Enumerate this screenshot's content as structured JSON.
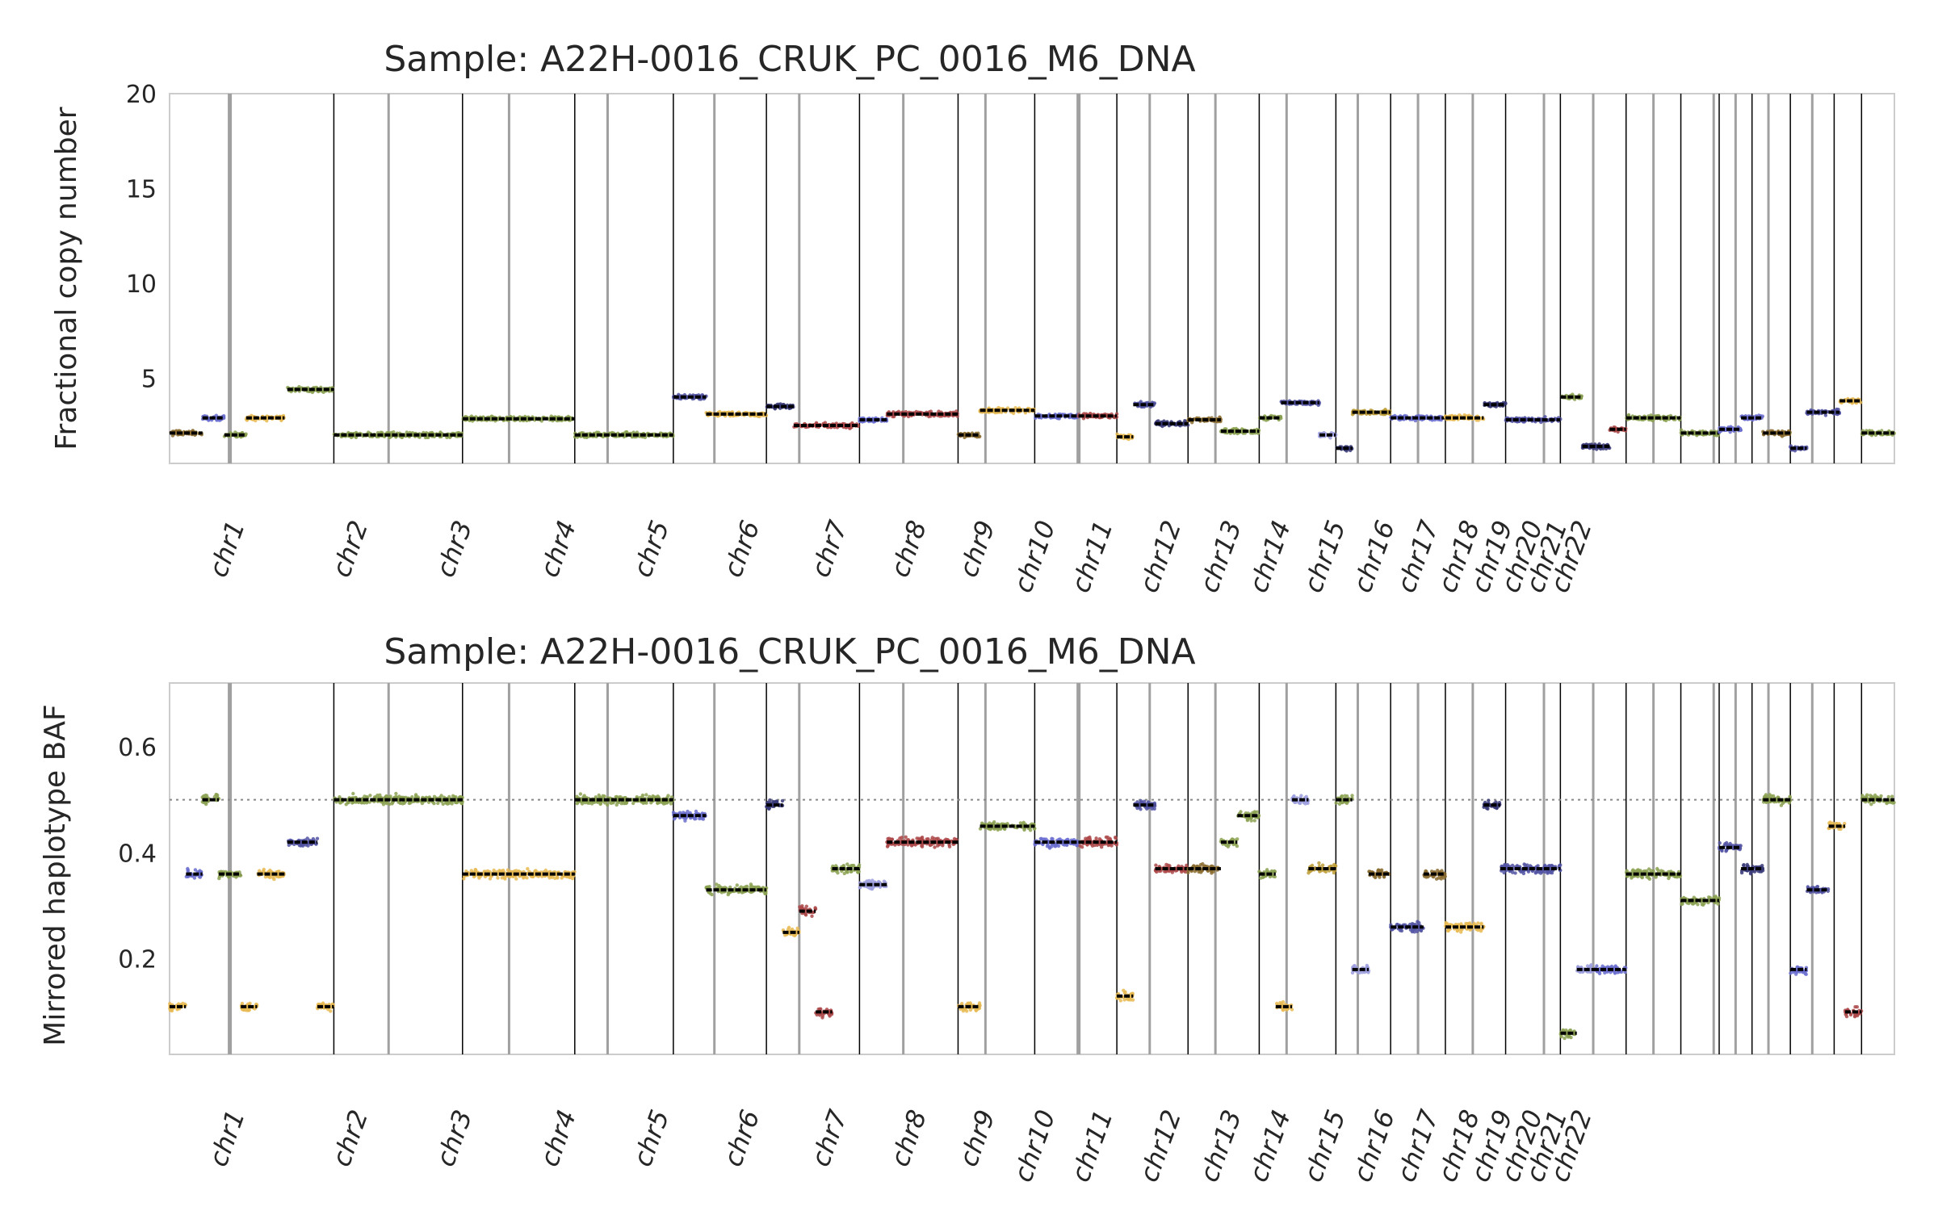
{
  "chart_data": [
    {
      "type": "scatter",
      "title": "Sample: A22H-0016_CRUK_PC_0016_M6_DNA",
      "ylabel": "Fractional copy number",
      "xlabel": "",
      "ylim": [
        0.5,
        20
      ],
      "yticks": [
        "5",
        "10",
        "15",
        "20"
      ],
      "ytick_values": [
        5,
        10,
        15,
        20
      ],
      "grid": false,
      "legend": "none",
      "chromosomes": [
        "chr1",
        "chr2",
        "chr3",
        "chr4",
        "chr5",
        "chr6",
        "chr7",
        "chr8",
        "chr9",
        "chr10",
        "chr11",
        "chr12",
        "chr13",
        "chr14",
        "chr15",
        "chr16",
        "chr17",
        "chr18",
        "chr19",
        "chr20",
        "chr21",
        "chr22"
      ],
      "segments": [
        {
          "x0": 0.0,
          "x1": 0.6,
          "y": 2.1,
          "color": "#8c6d31"
        },
        {
          "x0": 0.6,
          "x1": 1.0,
          "y": 2.9,
          "color": "#6b6ecf"
        },
        {
          "x0": 1.0,
          "x1": 1.4,
          "y": 2.0,
          "color": "#8ca252"
        },
        {
          "x0": 1.4,
          "x1": 2.1,
          "y": 2.9,
          "color": "#e7ba52"
        },
        {
          "x0": 2.15,
          "x1": 3.0,
          "y": 4.4,
          "color": "#8ca252"
        },
        {
          "x0": 3.0,
          "x1": 5.35,
          "y": 2.0,
          "color": "#8ca252"
        },
        {
          "x0": 5.35,
          "x1": 7.4,
          "y": 2.85,
          "color": "#8ca252"
        },
        {
          "x0": 7.4,
          "x1": 9.2,
          "y": 2.0,
          "color": "#8ca252"
        },
        {
          "x0": 9.2,
          "x1": 9.8,
          "y": 4.0,
          "color": "#5254a3"
        },
        {
          "x0": 9.8,
          "x1": 10.9,
          "y": 3.1,
          "color": "#e7ba52"
        },
        {
          "x0": 10.9,
          "x1": 11.4,
          "y": 3.5,
          "color": "#393b79"
        },
        {
          "x0": 11.4,
          "x1": 12.6,
          "y": 2.5,
          "color": "#ad494a"
        },
        {
          "x0": 12.6,
          "x1": 13.1,
          "y": 2.8,
          "color": "#6b6ecf"
        },
        {
          "x0": 13.1,
          "x1": 14.4,
          "y": 3.1,
          "color": "#ad494a"
        },
        {
          "x0": 14.4,
          "x1": 14.8,
          "y": 2.0,
          "color": "#8c6d31"
        },
        {
          "x0": 14.8,
          "x1": 15.8,
          "y": 3.3,
          "color": "#e7ba52"
        },
        {
          "x0": 15.8,
          "x1": 16.6,
          "y": 3.0,
          "color": "#6b6ecf"
        },
        {
          "x0": 16.6,
          "x1": 17.3,
          "y": 3.0,
          "color": "#ad494a"
        },
        {
          "x0": 17.3,
          "x1": 17.6,
          "y": 1.9,
          "color": "#e7ba52"
        },
        {
          "x0": 17.6,
          "x1": 18.0,
          "y": 3.6,
          "color": "#5254a3"
        },
        {
          "x0": 18.0,
          "x1": 18.6,
          "y": 2.6,
          "color": "#393b79"
        },
        {
          "x0": 18.6,
          "x1": 19.2,
          "y": 2.8,
          "color": "#8c6d31"
        },
        {
          "x0": 19.2,
          "x1": 19.9,
          "y": 2.2,
          "color": "#8ca252"
        },
        {
          "x0": 19.9,
          "x1": 20.3,
          "y": 2.9,
          "color": "#8ca252"
        },
        {
          "x0": 20.3,
          "x1": 21.0,
          "y": 3.7,
          "color": "#5254a3"
        },
        {
          "x0": 21.0,
          "x1": 21.3,
          "y": 2.0,
          "color": "#9c9ede"
        },
        {
          "x0": 21.3,
          "x1": 21.6,
          "y": 1.3,
          "color": "#393b79"
        },
        {
          "x0": 21.6,
          "x1": 22.3,
          "y": 3.2,
          "color": "#bd9e39"
        },
        {
          "x0": 22.3,
          "x1": 23.3,
          "y": 2.9,
          "color": "#6b6ecf"
        },
        {
          "x0": 23.3,
          "x1": 24.0,
          "y": 2.9,
          "color": "#e7ba52"
        },
        {
          "x0": 24.0,
          "x1": 24.4,
          "y": 3.6,
          "color": "#393b79"
        },
        {
          "x0": 24.4,
          "x1": 25.4,
          "y": 2.8,
          "color": "#5254a3"
        },
        {
          "x0": 25.4,
          "x1": 25.8,
          "y": 4.0,
          "color": "#8ca252"
        },
        {
          "x0": 25.8,
          "x1": 26.3,
          "y": 1.4,
          "color": "#393b79"
        },
        {
          "x0": 26.3,
          "x1": 26.6,
          "y": 2.3,
          "color": "#ad494a"
        },
        {
          "x0": 26.6,
          "x1": 27.6,
          "y": 2.9,
          "color": "#8ca252"
        },
        {
          "x0": 27.6,
          "x1": 28.3,
          "y": 2.1,
          "color": "#8ca252"
        },
        {
          "x0": 28.3,
          "x1": 28.7,
          "y": 2.3,
          "color": "#6b6ecf"
        },
        {
          "x0": 28.7,
          "x1": 29.1,
          "y": 2.9,
          "color": "#6b6ecf"
        },
        {
          "x0": 29.1,
          "x1": 29.6,
          "y": 2.1,
          "color": "#8c6d31"
        },
        {
          "x0": 29.6,
          "x1": 29.9,
          "y": 1.3,
          "color": "#5254a3"
        },
        {
          "x0": 29.9,
          "x1": 30.5,
          "y": 3.2,
          "color": "#5254a3"
        },
        {
          "x0": 30.5,
          "x1": 30.9,
          "y": 3.8,
          "color": "#e7ba52"
        },
        {
          "x0": 30.9,
          "x1": 31.5,
          "y": 2.1,
          "color": "#8ca252"
        }
      ]
    },
    {
      "type": "scatter",
      "title": "Sample: A22H-0016_CRUK_PC_0016_M6_DNA",
      "ylabel": "Mirrored haplotype BAF",
      "xlabel": "",
      "ylim": [
        0.02,
        0.72
      ],
      "yticks": [
        "0.2",
        "0.4",
        "0.6"
      ],
      "ytick_values": [
        0.2,
        0.4,
        0.6
      ],
      "reference_line": 0.5,
      "grid": false,
      "legend": "none",
      "chromosomes": [
        "chr1",
        "chr2",
        "chr3",
        "chr4",
        "chr5",
        "chr6",
        "chr7",
        "chr8",
        "chr9",
        "chr10",
        "chr11",
        "chr12",
        "chr13",
        "chr14",
        "chr15",
        "chr16",
        "chr17",
        "chr18",
        "chr19",
        "chr20",
        "chr21",
        "chr22"
      ],
      "segments": [
        {
          "x0": 0.0,
          "x1": 0.3,
          "y": 0.11,
          "color": "#e7ba52"
        },
        {
          "x0": 0.3,
          "x1": 0.6,
          "y": 0.36,
          "color": "#6b6ecf"
        },
        {
          "x0": 0.6,
          "x1": 0.9,
          "y": 0.5,
          "color": "#8ca252"
        },
        {
          "x0": 0.9,
          "x1": 1.3,
          "y": 0.36,
          "color": "#8ca252"
        },
        {
          "x0": 1.3,
          "x1": 1.6,
          "y": 0.11,
          "color": "#e7ba52"
        },
        {
          "x0": 1.6,
          "x1": 2.1,
          "y": 0.36,
          "color": "#e7ba52"
        },
        {
          "x0": 2.15,
          "x1": 2.7,
          "y": 0.42,
          "color": "#5254a3"
        },
        {
          "x0": 2.7,
          "x1": 3.0,
          "y": 0.11,
          "color": "#e7ba52"
        },
        {
          "x0": 3.0,
          "x1": 5.35,
          "y": 0.5,
          "color": "#8ca252"
        },
        {
          "x0": 5.35,
          "x1": 7.4,
          "y": 0.36,
          "color": "#e7ba52"
        },
        {
          "x0": 7.4,
          "x1": 9.2,
          "y": 0.5,
          "color": "#8ca252"
        },
        {
          "x0": 9.2,
          "x1": 9.8,
          "y": 0.47,
          "color": "#6b6ecf"
        },
        {
          "x0": 9.8,
          "x1": 10.9,
          "y": 0.33,
          "color": "#8ca252"
        },
        {
          "x0": 10.9,
          "x1": 11.2,
          "y": 0.49,
          "color": "#393b79"
        },
        {
          "x0": 11.2,
          "x1": 11.5,
          "y": 0.25,
          "color": "#e7ba52"
        },
        {
          "x0": 11.5,
          "x1": 11.8,
          "y": 0.29,
          "color": "#ad494a"
        },
        {
          "x0": 11.8,
          "x1": 12.1,
          "y": 0.1,
          "color": "#ad494a"
        },
        {
          "x0": 12.1,
          "x1": 12.6,
          "y": 0.37,
          "color": "#8ca252"
        },
        {
          "x0": 12.6,
          "x1": 13.1,
          "y": 0.34,
          "color": "#9c9ede"
        },
        {
          "x0": 13.1,
          "x1": 14.4,
          "y": 0.42,
          "color": "#ad494a"
        },
        {
          "x0": 14.4,
          "x1": 14.8,
          "y": 0.11,
          "color": "#e7ba52"
        },
        {
          "x0": 14.8,
          "x1": 15.8,
          "y": 0.45,
          "color": "#8ca252"
        },
        {
          "x0": 15.8,
          "x1": 16.6,
          "y": 0.42,
          "color": "#6b6ecf"
        },
        {
          "x0": 16.6,
          "x1": 17.3,
          "y": 0.42,
          "color": "#ad494a"
        },
        {
          "x0": 17.3,
          "x1": 17.6,
          "y": 0.13,
          "color": "#e7ba52"
        },
        {
          "x0": 17.6,
          "x1": 18.0,
          "y": 0.49,
          "color": "#5254a3"
        },
        {
          "x0": 18.0,
          "x1": 18.6,
          "y": 0.37,
          "color": "#ad494a"
        },
        {
          "x0": 18.6,
          "x1": 19.2,
          "y": 0.37,
          "color": "#8c6d31"
        },
        {
          "x0": 19.2,
          "x1": 19.5,
          "y": 0.42,
          "color": "#8ca252"
        },
        {
          "x0": 19.5,
          "x1": 19.9,
          "y": 0.47,
          "color": "#8ca252"
        },
        {
          "x0": 19.9,
          "x1": 20.2,
          "y": 0.36,
          "color": "#8ca252"
        },
        {
          "x0": 20.2,
          "x1": 20.5,
          "y": 0.11,
          "color": "#e7ba52"
        },
        {
          "x0": 20.5,
          "x1": 20.8,
          "y": 0.5,
          "color": "#9c9ede"
        },
        {
          "x0": 20.8,
          "x1": 21.3,
          "y": 0.37,
          "color": "#bd9e39"
        },
        {
          "x0": 21.3,
          "x1": 21.6,
          "y": 0.5,
          "color": "#8ca252"
        },
        {
          "x0": 21.6,
          "x1": 21.9,
          "y": 0.18,
          "color": "#9c9ede"
        },
        {
          "x0": 21.9,
          "x1": 22.3,
          "y": 0.36,
          "color": "#8c6d31"
        },
        {
          "x0": 22.3,
          "x1": 22.9,
          "y": 0.26,
          "color": "#5254a3"
        },
        {
          "x0": 22.9,
          "x1": 23.3,
          "y": 0.36,
          "color": "#8c6d31"
        },
        {
          "x0": 23.3,
          "x1": 24.0,
          "y": 0.26,
          "color": "#e7ba52"
        },
        {
          "x0": 24.0,
          "x1": 24.3,
          "y": 0.49,
          "color": "#393b79"
        },
        {
          "x0": 24.3,
          "x1": 25.4,
          "y": 0.37,
          "color": "#5254a3"
        },
        {
          "x0": 25.4,
          "x1": 25.7,
          "y": 0.06,
          "color": "#8ca252"
        },
        {
          "x0": 25.7,
          "x1": 26.0,
          "y": 0.18,
          "color": "#9c9ede"
        },
        {
          "x0": 26.0,
          "x1": 26.6,
          "y": 0.18,
          "color": "#6b6ecf"
        },
        {
          "x0": 26.6,
          "x1": 27.6,
          "y": 0.36,
          "color": "#8ca252"
        },
        {
          "x0": 27.6,
          "x1": 28.3,
          "y": 0.31,
          "color": "#8ca252"
        },
        {
          "x0": 28.3,
          "x1": 28.7,
          "y": 0.41,
          "color": "#5254a3"
        },
        {
          "x0": 28.7,
          "x1": 29.1,
          "y": 0.37,
          "color": "#393b79"
        },
        {
          "x0": 29.1,
          "x1": 29.6,
          "y": 0.5,
          "color": "#8ca252"
        },
        {
          "x0": 29.6,
          "x1": 29.9,
          "y": 0.18,
          "color": "#6b6ecf"
        },
        {
          "x0": 29.9,
          "x1": 30.3,
          "y": 0.33,
          "color": "#5254a3"
        },
        {
          "x0": 30.3,
          "x1": 30.6,
          "y": 0.45,
          "color": "#e7ba52"
        },
        {
          "x0": 30.6,
          "x1": 30.9,
          "y": 0.1,
          "color": "#ad494a"
        },
        {
          "x0": 30.9,
          "x1": 31.5,
          "y": 0.5,
          "color": "#8ca252"
        }
      ]
    }
  ],
  "chromosome_bounds": [
    0,
    3.0,
    5.35,
    7.4,
    9.2,
    10.9,
    12.6,
    14.4,
    15.8,
    17.3,
    18.6,
    19.9,
    21.3,
    22.3,
    23.3,
    24.4,
    25.4,
    26.6,
    27.6,
    28.3,
    28.9,
    29.6,
    30.4,
    30.9,
    31.5
  ],
  "centromeres": [
    1.1,
    4.0,
    6.2,
    8.0,
    9.95,
    11.5,
    13.4,
    14.9,
    16.6,
    17.9,
    19.1,
    20.4,
    21.7,
    22.8,
    23.8,
    25.1,
    26.0,
    27.1,
    28.2,
    28.6,
    29.2,
    30.0
  ],
  "chromosome_tick_positions": [
    1.2,
    3.45,
    5.35,
    7.25,
    8.95,
    10.6,
    12.2,
    13.65,
    14.9,
    16.0,
    17.05,
    18.3,
    19.4,
    20.3,
    21.3,
    22.2,
    23.0,
    23.75,
    24.35,
    24.9,
    25.35,
    25.8
  ]
}
